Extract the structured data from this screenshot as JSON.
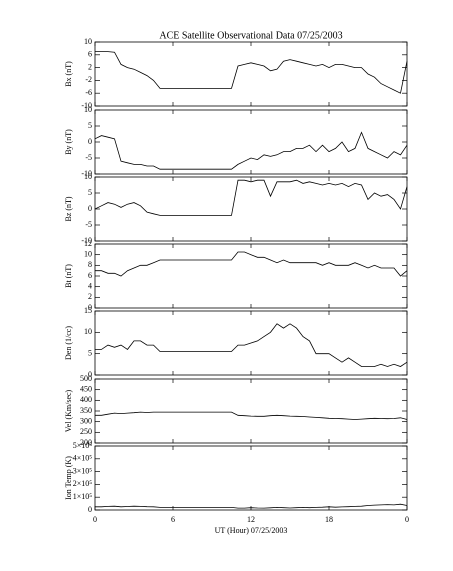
{
  "chart_data": [
    {
      "type": "line",
      "title": "ACE Satellite Observational Data   07/25/2003",
      "ylabel": "Bx (nT)",
      "color": "#000000",
      "x": [
        0,
        0.5,
        1,
        1.5,
        2,
        2.5,
        3,
        3.5,
        4,
        4.5,
        5,
        10.5,
        11,
        11.5,
        12,
        12.5,
        13,
        13.5,
        14,
        14.5,
        15,
        15.5,
        16,
        16.5,
        17,
        17.5,
        18,
        18.5,
        19,
        19.5,
        20,
        20.5,
        21,
        21.5,
        22,
        22.5,
        23,
        23.5,
        24
      ],
      "values": [
        7,
        7,
        7,
        6.8,
        3,
        2,
        1.5,
        0.5,
        -0.5,
        -2,
        -4.5,
        -4.5,
        2.5,
        3,
        3.5,
        3,
        2.5,
        1,
        1.5,
        4,
        4.5,
        4,
        3.5,
        3,
        2.5,
        3,
        2,
        3,
        3,
        2.5,
        2,
        2,
        0,
        -1,
        -3,
        -4,
        -5,
        -6,
        4
      ],
      "xlim": [
        0,
        24
      ],
      "ylim": [
        -10,
        10
      ],
      "yticks": [
        -10,
        -6,
        -2,
        2,
        6,
        10
      ]
    },
    {
      "type": "line",
      "ylabel": "By (nT)",
      "color": "#000000",
      "x": [
        0,
        0.5,
        1,
        1.5,
        2,
        2.5,
        3,
        3.5,
        4,
        4.5,
        5,
        10.5,
        11,
        11.5,
        12,
        12.5,
        13,
        13.5,
        14,
        14.5,
        15,
        15.5,
        16,
        16.5,
        17,
        17.5,
        18,
        18.5,
        19,
        19.5,
        20,
        20.5,
        21,
        21.5,
        22,
        22.5,
        23,
        23.5,
        24
      ],
      "values": [
        1,
        2,
        1.5,
        1,
        -6,
        -6.5,
        -7,
        -7,
        -7.5,
        -7.5,
        -8.5,
        -8.5,
        -7,
        -6,
        -5,
        -5.5,
        -4,
        -4.5,
        -4,
        -3,
        -3,
        -2,
        -2,
        -1,
        -3,
        -1,
        -3,
        -2,
        0,
        -3,
        -2,
        3,
        -2,
        -3,
        -4,
        -5,
        -3,
        -4,
        -1
      ],
      "xlim": [
        0,
        24
      ],
      "ylim": [
        -10,
        10
      ],
      "yticks": [
        -10,
        -5,
        0,
        5,
        10
      ]
    },
    {
      "type": "line",
      "ylabel": "Bz (nT)",
      "color": "#000000",
      "x": [
        0,
        0.5,
        1,
        1.5,
        2,
        2.5,
        3,
        3.5,
        4,
        4.5,
        5,
        10.5,
        11,
        11.5,
        12,
        12.5,
        13,
        13.5,
        14,
        14.5,
        15,
        15.5,
        16,
        16.5,
        17,
        17.5,
        18,
        18.5,
        19,
        19.5,
        20,
        20.5,
        21,
        21.5,
        22,
        22.5,
        23,
        23.5,
        24
      ],
      "values": [
        0,
        1,
        2,
        1.5,
        0.5,
        1.5,
        2,
        1,
        -1,
        -1.5,
        -2,
        -2,
        9,
        9,
        8.5,
        9,
        9,
        4,
        8.5,
        8.5,
        8.5,
        9,
        8,
        8.5,
        8,
        7.5,
        8,
        7.5,
        8,
        7,
        8,
        7.5,
        3,
        5,
        4,
        4.5,
        3,
        0,
        7
      ],
      "xlim": [
        0,
        24
      ],
      "ylim": [
        -10,
        10
      ],
      "yticks": [
        -10,
        -5,
        0,
        5,
        10
      ]
    },
    {
      "type": "line",
      "ylabel": "Bt (nT)",
      "color": "#000000",
      "x": [
        0,
        0.5,
        1,
        1.5,
        2,
        2.5,
        3,
        3.5,
        4,
        4.5,
        5,
        10.5,
        11,
        11.5,
        12,
        12.5,
        13,
        13.5,
        14,
        14.5,
        15,
        15.5,
        16,
        16.5,
        17,
        17.5,
        18,
        18.5,
        19,
        19.5,
        20,
        20.5,
        21,
        21.5,
        22,
        22.5,
        23,
        23.5,
        24
      ],
      "values": [
        7,
        7,
        6.5,
        6.5,
        6,
        7,
        7.5,
        8,
        8,
        8.5,
        9,
        9,
        10.5,
        10.5,
        10,
        9.5,
        9.5,
        9,
        8.5,
        9,
        8.5,
        8.5,
        8.5,
        8.5,
        8.5,
        8,
        8.5,
        8,
        8,
        8,
        8.5,
        8,
        7.5,
        8,
        7.5,
        7.5,
        7.5,
        6,
        7
      ],
      "xlim": [
        0,
        24
      ],
      "ylim": [
        0,
        12
      ],
      "yticks": [
        0,
        2,
        4,
        6,
        8,
        10,
        12
      ]
    },
    {
      "type": "line",
      "ylabel": "Den (1/cc)",
      "color": "#000000",
      "x": [
        0,
        0.5,
        1,
        1.5,
        2,
        2.5,
        3,
        3.5,
        4,
        4.5,
        5,
        10.5,
        11,
        11.5,
        12,
        12.5,
        13,
        13.5,
        14,
        14.5,
        15,
        15.5,
        16,
        16.5,
        17,
        17.5,
        18,
        18.5,
        19,
        19.5,
        20,
        20.5,
        21,
        21.5,
        22,
        22.5,
        23,
        23.5,
        24
      ],
      "values": [
        6,
        6,
        7,
        6.5,
        7,
        6,
        8,
        8,
        7,
        7,
        5.5,
        5.5,
        7,
        7,
        7.5,
        8,
        9,
        10,
        12,
        11,
        12,
        11,
        9,
        8,
        5,
        5,
        5,
        4,
        3,
        4,
        3,
        2,
        2,
        2,
        2.5,
        2,
        2.5,
        2,
        3
      ],
      "xlim": [
        0,
        24
      ],
      "ylim": [
        0,
        15
      ],
      "yticks": [
        0,
        5,
        10,
        15
      ]
    },
    {
      "type": "line",
      "ylabel": "Vel (Km/sec)",
      "color": "#000000",
      "x": [
        0,
        0.5,
        1,
        1.5,
        2,
        2.5,
        3,
        3.5,
        4,
        4.5,
        5,
        10.5,
        11,
        11.5,
        12,
        12.5,
        13,
        13.5,
        14,
        14.5,
        15,
        15.5,
        16,
        16.5,
        17,
        17.5,
        18,
        18.5,
        19,
        19.5,
        20,
        20.5,
        21,
        21.5,
        22,
        22.5,
        23,
        23.5,
        24
      ],
      "values": [
        330,
        330,
        335,
        340,
        338,
        340,
        342,
        345,
        343,
        345,
        345,
        345,
        330,
        328,
        326,
        325,
        325,
        328,
        330,
        328,
        326,
        325,
        324,
        322,
        320,
        318,
        316,
        315,
        314,
        312,
        310,
        312,
        314,
        316,
        315,
        314,
        315,
        318,
        310
      ],
      "xlim": [
        0,
        24
      ],
      "ylim": [
        200,
        500
      ],
      "yticks": [
        200,
        250,
        300,
        350,
        400,
        450,
        500
      ]
    },
    {
      "type": "line",
      "ylabel": "Ion Temp (K)",
      "xlabel": "UT (Hour)  07/25/2003",
      "color": "#000000",
      "x": [
        0,
        0.5,
        1,
        1.5,
        2,
        2.5,
        3,
        3.5,
        4,
        4.5,
        5,
        10.5,
        11,
        11.5,
        12,
        12.5,
        13,
        13.5,
        14,
        14.5,
        15,
        15.5,
        16,
        16.5,
        17,
        17.5,
        18,
        18.5,
        19,
        19.5,
        20,
        20.5,
        21,
        21.5,
        22,
        22.5,
        23,
        23.5,
        24
      ],
      "values": [
        25000,
        25000,
        28000,
        30000,
        25000,
        27000,
        30000,
        28000,
        26000,
        25000,
        20000,
        20000,
        15000,
        15000,
        18000,
        16000,
        15000,
        17000,
        20000,
        18000,
        16000,
        18000,
        20000,
        18000,
        20000,
        22000,
        25000,
        22000,
        24000,
        26000,
        28000,
        30000,
        35000,
        38000,
        40000,
        42000,
        40000,
        45000,
        35000
      ],
      "xlim": [
        0,
        24
      ],
      "ylim": [
        0,
        500000
      ],
      "yticks": [
        0,
        {
          "value": 100000,
          "label": "1×10⁵"
        },
        {
          "value": 200000,
          "label": "2×10⁵"
        },
        {
          "value": 300000,
          "label": "3×10⁵"
        },
        {
          "value": 400000,
          "label": "4×10⁵"
        },
        {
          "value": 500000,
          "label": "5×10⁵"
        }
      ],
      "xticks": [
        0,
        6,
        12,
        18,
        {
          "value": 24,
          "label": "0"
        }
      ]
    }
  ]
}
